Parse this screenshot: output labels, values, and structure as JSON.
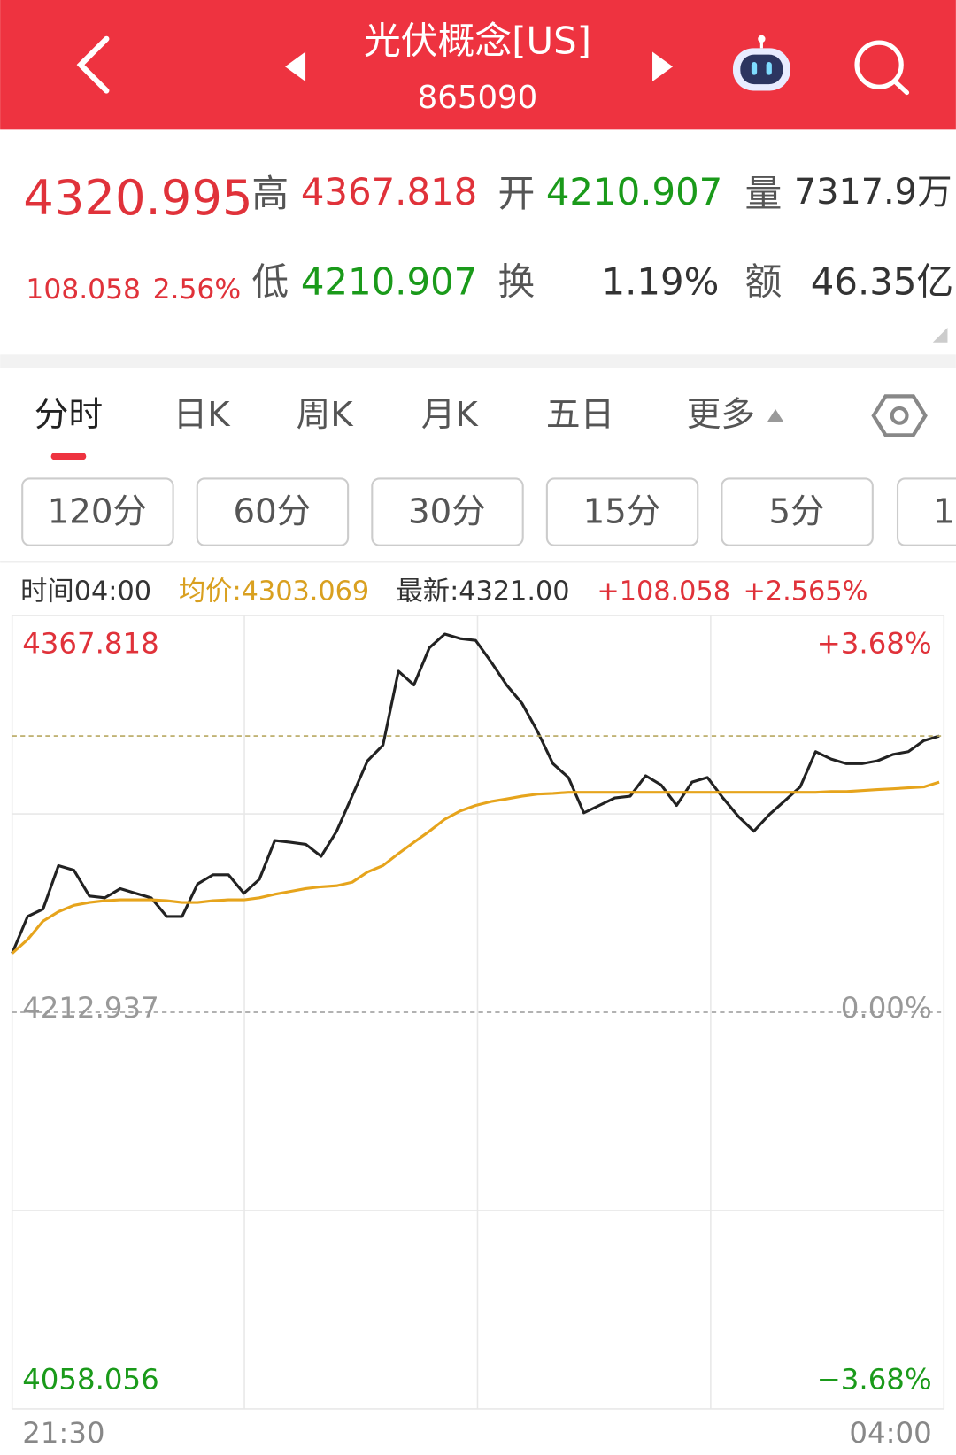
{
  "header": {
    "title": "光伏概念[US]",
    "code": "865090"
  },
  "quote": {
    "price": "4320.995",
    "change": "108.058",
    "change_pct": "2.56%",
    "high_label": "高",
    "high": "4367.818",
    "open_label": "开",
    "open": "4210.907",
    "volume_label": "量",
    "volume": "7317.9万",
    "low_label": "低",
    "low": "4210.907",
    "turnover_label": "换",
    "turnover": "1.19%",
    "amount_label": "额",
    "amount": "46.35亿"
  },
  "tabs": [
    "分时",
    "日K",
    "周K",
    "月K",
    "五日",
    "更多"
  ],
  "intervals": [
    "120分",
    "60分",
    "30分",
    "15分",
    "5分",
    "1"
  ],
  "info": {
    "time": "时间04:00",
    "avg": "均价:4303.069",
    "latest": "最新:4321.00",
    "change": "+108.058",
    "change_pct": "+2.565%"
  },
  "chart_data": {
    "type": "line",
    "series": [
      {
        "color": "#222222",
        "values": [
          4235.9,
          4250.3,
          4253.2,
          4270.2,
          4268.4,
          4258.3,
          4257.6,
          4261.2,
          4259.4,
          4257.6,
          4250.3,
          4250.3,
          4263.0,
          4266.6,
          4266.6,
          4259.4,
          4264.8,
          4280.0,
          4279.3,
          4278.5,
          4273.8,
          4283.6,
          4297.3,
          4311.1,
          4317.2,
          4346.1,
          4340.7,
          4355.2,
          4360.6,
          4358.8,
          4358.1,
          4349.7,
          4340.7,
          4333.5,
          4322.6,
          4310.0,
          4304.6,
          4290.8,
          4293.7,
          4296.6,
          4297.3,
          4305.3,
          4301.7,
          4293.7,
          4302.8,
          4304.6,
          4296.6,
          4289.4,
          4283.6,
          4290.1,
          4295.5,
          4300.9,
          4314.7,
          4311.8,
          4310.0,
          4310.0,
          4311.1,
          4313.6,
          4314.7,
          4319.0,
          4320.8
        ]
      },
      {
        "color": "#e6a41c",
        "values": [
          4235.9,
          4241.3,
          4248.5,
          4252.2,
          4254.7,
          4255.8,
          4256.5,
          4256.8,
          4256.8,
          4256.8,
          4256.5,
          4255.8,
          4255.8,
          4256.5,
          4256.8,
          4256.8,
          4257.6,
          4259.0,
          4260.1,
          4261.2,
          4261.9,
          4262.3,
          4263.7,
          4267.7,
          4270.2,
          4274.9,
          4279.3,
          4283.6,
          4288.3,
          4291.5,
          4293.7,
          4295.2,
          4296.2,
          4297.3,
          4298.1,
          4298.4,
          4298.8,
          4298.8,
          4298.8,
          4298.8,
          4298.8,
          4298.8,
          4298.8,
          4298.8,
          4298.8,
          4298.8,
          4298.8,
          4298.8,
          4298.8,
          4298.8,
          4298.8,
          4298.8,
          4298.8,
          4299.1,
          4299.1,
          4299.5,
          4299.9,
          4300.2,
          4300.6,
          4300.9,
          4302.8
        ]
      }
    ],
    "ylim": [
      4058.056,
      4367.818
    ],
    "yticks": [
      4367.818,
      4212.937,
      4058.056
    ],
    "y2lim": [
      -3.68,
      3.68
    ],
    "y2ticks": [
      {
        "value": 3.68,
        "label": "+3.68%"
      },
      {
        "value": 0,
        "label": "0.00%"
      },
      {
        "value": -3.68,
        "label": "−3.68%"
      }
    ],
    "x_labels": [
      "21:30",
      "04:00"
    ]
  }
}
